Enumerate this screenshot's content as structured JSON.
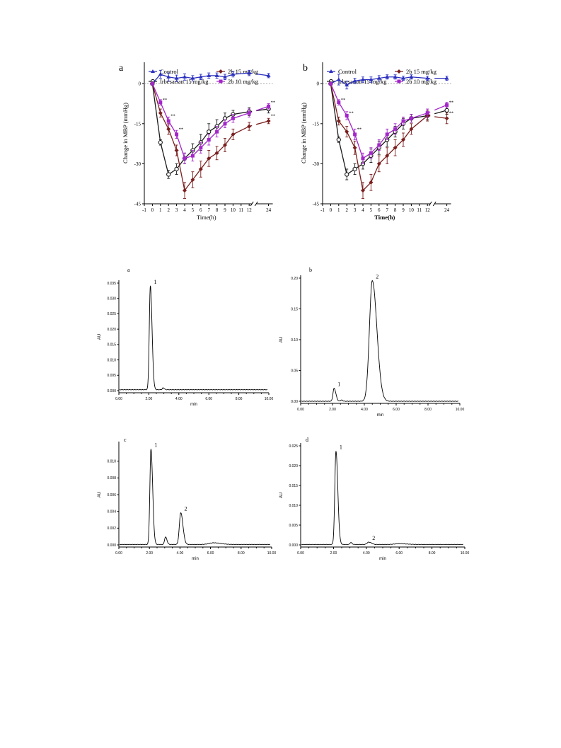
{
  "figure_top": {
    "panels": [
      {
        "letter": "a"
      },
      {
        "letter": "b"
      }
    ],
    "legend": [
      "Control",
      "Irbesartan  15 mg/kg",
      "2b  15 mg/kg",
      "2b  10 mg/kg"
    ],
    "series_colors": [
      "#2b2fbf",
      "#1a1a1a",
      "#7a1e1e",
      "#a326c9"
    ],
    "series_markers": [
      "triangle",
      "circle-open",
      "diamond",
      "square"
    ],
    "xlabel": "Time(h)",
    "ylabel": "Change in MBP (mmHg)",
    "significance_mark": "**"
  },
  "figure_bottom": {
    "panels": [
      {
        "letter": "a"
      },
      {
        "letter": "b"
      },
      {
        "letter": "c"
      },
      {
        "letter": "d"
      }
    ],
    "xlabel": "min",
    "ylabel": "AU"
  },
  "chart_data": [
    {
      "type": "line",
      "panel": "a",
      "x_tick_labels": [
        "-1",
        "0",
        "1",
        "2",
        "3",
        "4",
        "5",
        "6",
        "7",
        "8",
        "9",
        "10",
        "11",
        "12",
        "24"
      ],
      "y_tick_labels": [
        "0",
        "-15",
        "-30",
        "-45"
      ],
      "ylim": [
        -45,
        8
      ],
      "x_axis_break": [
        12,
        24
      ],
      "xlabel": "Time(h)",
      "ylabel": "Change in MBP (mmHg)",
      "x": [
        0,
        1,
        2,
        3,
        4,
        5,
        6,
        7,
        8,
        9,
        10,
        12,
        24
      ],
      "series": [
        {
          "name": "Control",
          "values": [
            0,
            3.5,
            2.5,
            2.0,
            2.5,
            2.0,
            2.5,
            3.0,
            3.0,
            2.5,
            3.5,
            4.0,
            3.0
          ],
          "errors": [
            0,
            1.5,
            1.5,
            1.2,
            1.2,
            1.0,
            1.0,
            1.0,
            1.0,
            1.0,
            1.0,
            1.0,
            0.8
          ]
        },
        {
          "name": "Irbesartan  15 mg/kg",
          "values": [
            0,
            -22,
            -34,
            -32,
            -28,
            -25,
            -22,
            -18,
            -16,
            -13,
            -11.5,
            -10.5,
            -9.5
          ],
          "errors": [
            0,
            1.0,
            1.5,
            2.0,
            2.0,
            2.5,
            3.0,
            3.0,
            2.5,
            2.0,
            1.5,
            1.5,
            1.5
          ]
        },
        {
          "name": "2b  15 mg/kg",
          "values": [
            0,
            -11,
            -17,
            -25,
            -40,
            -36,
            -32,
            -28,
            -26,
            -23,
            -19,
            -16,
            -14
          ],
          "errors": [
            0,
            1.5,
            2.0,
            2.0,
            3.0,
            3.0,
            3.0,
            3.0,
            2.5,
            2.5,
            2.0,
            1.5,
            1.0
          ]
        },
        {
          "name": "2b  10 mg/kg",
          "values": [
            0,
            -7,
            -14,
            -19,
            -28,
            -27,
            -24,
            -21,
            -18,
            -15,
            -13,
            -11,
            -8.5
          ],
          "errors": [
            0,
            1.0,
            1.5,
            1.5,
            2.0,
            2.0,
            2.0,
            2.0,
            2.0,
            1.5,
            1.5,
            1.5,
            1.0
          ]
        }
      ],
      "significance_annotations": [
        {
          "x": 1,
          "y": -6,
          "text": "**"
        },
        {
          "x": 2,
          "y": -12,
          "text": "**"
        },
        {
          "x": 3,
          "y": -17,
          "text": "**"
        },
        {
          "x": 24,
          "y": -7,
          "text": "**"
        },
        {
          "x": 24,
          "y": -12,
          "text": "**"
        }
      ]
    },
    {
      "type": "line",
      "panel": "b",
      "x_tick_labels": [
        "-1",
        "0",
        "1",
        "2",
        "3",
        "4",
        "5",
        "6",
        "7",
        "8",
        "9",
        "10",
        "11",
        "12",
        "24"
      ],
      "y_tick_labels": [
        "0",
        "-15",
        "-30",
        "-45"
      ],
      "ylim": [
        -45,
        8
      ],
      "x_axis_break": [
        12,
        24
      ],
      "xlabel": "Time(h)",
      "ylabel": "Change in MBP (mmHg)",
      "x": [
        0,
        1,
        2,
        3,
        4,
        5,
        6,
        7,
        8,
        9,
        10,
        12,
        24
      ],
      "series": [
        {
          "name": "Control",
          "values": [
            0,
            1.5,
            -0.5,
            1.0,
            1.5,
            1.5,
            2.0,
            2.5,
            2.5,
            2.0,
            2.5,
            2.0,
            2.0
          ],
          "errors": [
            0,
            2.0,
            1.5,
            1.0,
            1.0,
            1.0,
            1.0,
            0.8,
            0.8,
            0.8,
            0.8,
            0.8,
            0.8
          ]
        },
        {
          "name": "Irbesartan  15 mg/kg",
          "values": [
            0,
            -21,
            -34,
            -32,
            -30,
            -27,
            -24,
            -21,
            -18,
            -15,
            -13,
            -12,
            -10
          ],
          "errors": [
            0,
            1.0,
            2.0,
            2.0,
            2.0,
            2.5,
            2.5,
            2.5,
            2.0,
            2.0,
            1.5,
            1.5,
            1.5
          ]
        },
        {
          "name": "2b  15 mg/kg",
          "values": [
            0,
            -14,
            -18,
            -24,
            -40,
            -37,
            -30,
            -27,
            -24,
            -21,
            -17,
            -12,
            -13
          ],
          "errors": [
            0,
            1.5,
            2.0,
            2.5,
            3.0,
            3.0,
            3.0,
            3.0,
            3.0,
            2.5,
            2.0,
            2.0,
            2.0
          ]
        },
        {
          "name": "2b  10 mg/kg",
          "values": [
            0,
            -7,
            -12,
            -19,
            -28,
            -26,
            -23,
            -19,
            -17,
            -14,
            -13,
            -11,
            -8
          ],
          "errors": [
            0,
            1.0,
            1.5,
            2.0,
            2.0,
            2.0,
            2.0,
            2.0,
            2.0,
            1.5,
            1.5,
            1.5,
            1.0
          ]
        }
      ],
      "significance_annotations": [
        {
          "x": 1,
          "y": -6,
          "text": "**"
        },
        {
          "x": 2,
          "y": -11,
          "text": "**"
        },
        {
          "x": 3,
          "y": -17,
          "text": "**"
        },
        {
          "x": 24,
          "y": -7,
          "text": "**"
        },
        {
          "x": 24,
          "y": -11,
          "text": "**"
        }
      ]
    },
    {
      "type": "line",
      "panel": "a",
      "xlim": [
        0,
        10
      ],
      "ylim": [
        0,
        0.035
      ],
      "x_tick_labels": [
        "0.00",
        "2.00",
        "4.00",
        "6.00",
        "8.00",
        "10.00"
      ],
      "y_tick_labels": [
        "0.000",
        "0.005",
        "0.010",
        "0.015",
        "0.020",
        "0.025",
        "0.030",
        "0.035"
      ],
      "xlabel": "min",
      "ylabel": "AU",
      "baseline": 0.0003,
      "peaks": [
        {
          "rt": 2.1,
          "height": 0.0338,
          "width": 0.07,
          "label": "1"
        },
        {
          "rt": 2.95,
          "height": 0.0006,
          "width": 0.05,
          "label": ""
        }
      ]
    },
    {
      "type": "line",
      "panel": "b",
      "xlim": [
        0,
        10
      ],
      "ylim": [
        0,
        0.2
      ],
      "x_tick_labels": [
        "0.00",
        "2.00",
        "4.00",
        "6.00",
        "8.00",
        "10.00"
      ],
      "y_tick_labels": [
        "0.00",
        "0.05",
        "0.10",
        "0.15",
        "0.20"
      ],
      "xlabel": "min",
      "ylabel": "AU",
      "baseline": 0.0,
      "peaks": [
        {
          "rt": 2.1,
          "height": 0.021,
          "width": 0.07,
          "label": "1"
        },
        {
          "rt": 2.55,
          "height": 0.002,
          "width": 0.05,
          "label": ""
        },
        {
          "rt": 4.5,
          "height": 0.196,
          "width": 0.18,
          "label": "2"
        }
      ]
    },
    {
      "type": "line",
      "panel": "c",
      "xlim": [
        0,
        10
      ],
      "ylim": [
        0,
        0.012
      ],
      "x_tick_labels": [
        "0.00",
        "2.00",
        "4.00",
        "6.00",
        "8.00",
        "10.00"
      ],
      "y_tick_labels": [
        "0.000",
        "0.002",
        "0.004",
        "0.006",
        "0.008",
        "0.010"
      ],
      "xlabel": "min",
      "ylabel": "AU",
      "baseline": 5e-05,
      "peaks": [
        {
          "rt": 2.1,
          "height": 0.0114,
          "width": 0.07,
          "label": "1"
        },
        {
          "rt": 3.05,
          "height": 0.0009,
          "width": 0.06,
          "label": ""
        },
        {
          "rt": 4.05,
          "height": 0.0038,
          "width": 0.09,
          "label": "2"
        },
        {
          "rt": 6.2,
          "height": 0.0002,
          "width": 0.3,
          "label": ""
        }
      ]
    },
    {
      "type": "line",
      "panel": "d",
      "xlim": [
        0,
        10
      ],
      "ylim": [
        0,
        0.025
      ],
      "x_tick_labels": [
        "0.00",
        "2.00",
        "4.00",
        "6.00",
        "8.00",
        "10.00"
      ],
      "y_tick_labels": [
        "0.000",
        "0.005",
        "0.010",
        "0.015",
        "0.020",
        "0.025"
      ],
      "xlabel": "min",
      "ylabel": "AU",
      "baseline": 0.0001,
      "peaks": [
        {
          "rt": 2.15,
          "height": 0.0236,
          "width": 0.07,
          "label": "1"
        },
        {
          "rt": 3.05,
          "height": 0.0005,
          "width": 0.05,
          "label": ""
        },
        {
          "rt": 4.15,
          "height": 0.0006,
          "width": 0.1,
          "label": "2"
        },
        {
          "rt": 6.0,
          "height": 0.0002,
          "width": 0.3,
          "label": ""
        }
      ]
    }
  ]
}
